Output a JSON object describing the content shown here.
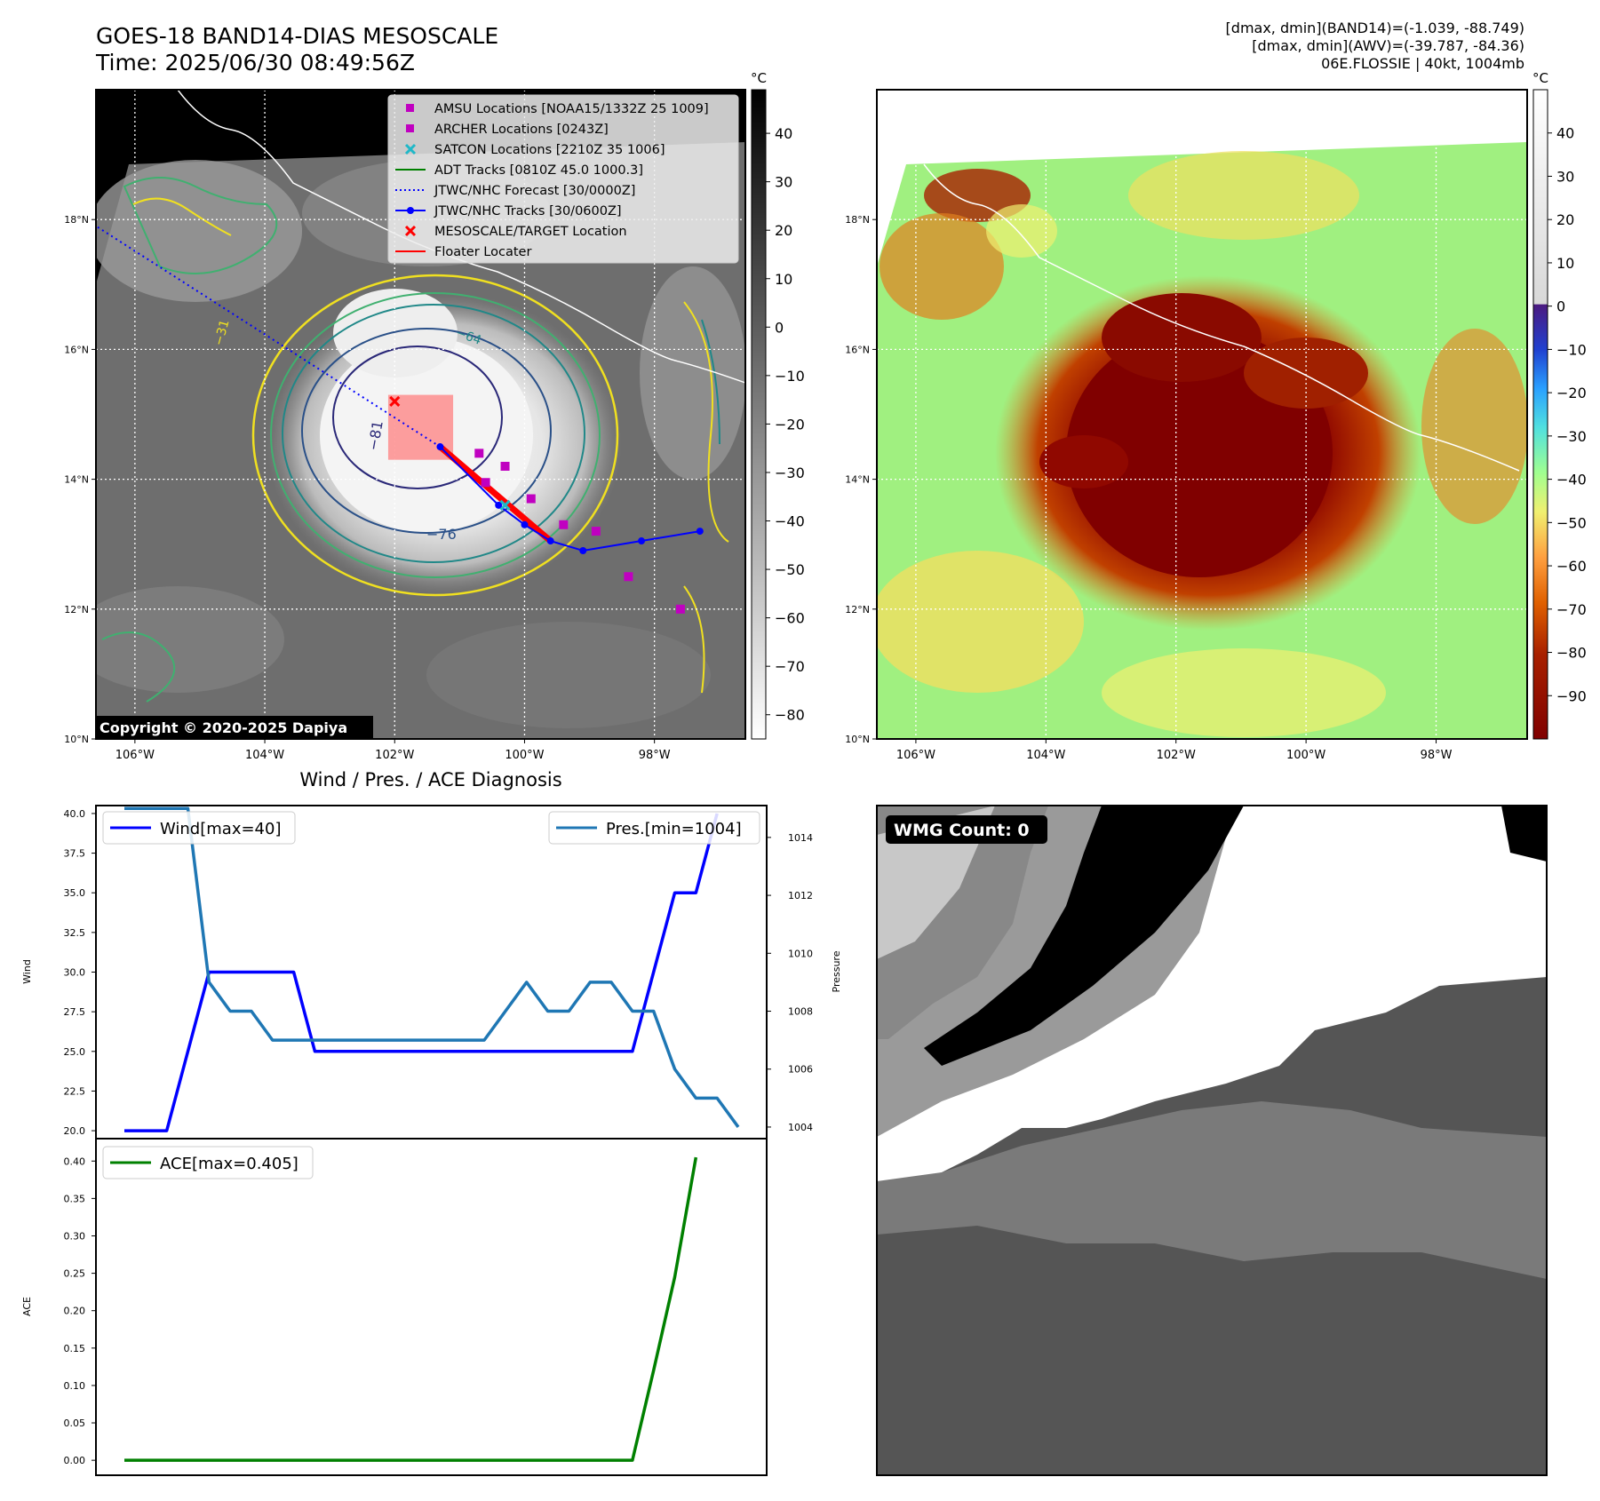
{
  "header": {
    "title_line1": "GOES-18 BAND14-DIAS MESOSCALE",
    "title_line2": "Time: 2025/06/30 08:49:56Z",
    "info_line1": "[dmax, dmin](BAND14)=(-1.039, -88.749)",
    "info_line2": "[dmax, dmin](AWV)=(-39.787, -84.36)",
    "info_line3": "06E.FLOSSIE | 40kt, 1004mb"
  },
  "map_axes": {
    "lon_ticks": [
      "106°W",
      "104°W",
      "102°W",
      "100°W",
      "98°W"
    ],
    "lat_ticks": [
      "18°N",
      "16°N",
      "14°N",
      "12°N",
      "10°N"
    ],
    "lon_values": [
      -106,
      -104,
      -102,
      -100,
      -98
    ],
    "lat_values": [
      18,
      16,
      14,
      12,
      10
    ],
    "lon_range": [
      -106.6,
      -96.6
    ],
    "lat_range": [
      10.0,
      20.0
    ]
  },
  "ir_panel": {
    "colorbar_unit": "°C",
    "colorbar_ticks": [
      "40",
      "30",
      "20",
      "10",
      "0",
      "−10",
      "−20",
      "−30",
      "−40",
      "−50",
      "−60",
      "−70",
      "−80"
    ],
    "colorbar_values": [
      40,
      30,
      20,
      10,
      0,
      -10,
      -20,
      -30,
      -40,
      -50,
      -60,
      -70,
      -80
    ],
    "colorbar_range": [
      -85,
      49
    ],
    "contour_labels": [
      "−81",
      "−76",
      "−64",
      "−31"
    ],
    "copyright": "Copyright © 2020-2025 Dapiya",
    "legend": [
      {
        "label": "AMSU Locations [NOAA15/1332Z 25 1009]",
        "marker": "square",
        "color": "#c000c0"
      },
      {
        "label": "ARCHER Locations [0243Z]",
        "marker": "square",
        "color": "#c000c0"
      },
      {
        "label": "SATCON Locations [2210Z 35 1006]",
        "marker": "x",
        "color": "#1fb8c8"
      },
      {
        "label": "ADT Tracks [0810Z 45.0 1000.3]",
        "marker": "line",
        "color": "#008000"
      },
      {
        "label": "JTWC/NHC Forecast [30/0000Z]",
        "marker": "dotted",
        "color": "#0000ff"
      },
      {
        "label": "JTWC/NHC Tracks [30/0600Z]",
        "marker": "line-dot",
        "color": "#0000ff"
      },
      {
        "label": "MESOSCALE/TARGET Location",
        "marker": "x",
        "color": "#ff0000"
      },
      {
        "label": "Floater Locater",
        "marker": "line",
        "color": "#ff0000"
      }
    ],
    "jtwc_track": [
      {
        "lon": -97.3,
        "lat": 13.2
      },
      {
        "lon": -98.2,
        "lat": 13.05
      },
      {
        "lon": -99.1,
        "lat": 12.9
      },
      {
        "lon": -99.6,
        "lat": 13.05
      },
      {
        "lon": -100.0,
        "lat": 13.3
      },
      {
        "lon": -100.4,
        "lat": 13.6
      },
      {
        "lon": -101.3,
        "lat": 14.5
      }
    ],
    "jtwc_forecast_start": {
      "lon": -101.3,
      "lat": 14.5
    },
    "jtwc_forecast_end": {
      "lon": -106.6,
      "lat": 17.9
    },
    "amsu_points": [
      {
        "lon": -100.7,
        "lat": 14.4
      },
      {
        "lon": -100.3,
        "lat": 14.2
      },
      {
        "lon": -100.6,
        "lat": 13.95
      },
      {
        "lon": -99.9,
        "lat": 13.7
      },
      {
        "lon": -99.4,
        "lat": 13.3
      },
      {
        "lon": -98.9,
        "lat": 13.2
      },
      {
        "lon": -98.4,
        "lat": 12.5
      },
      {
        "lon": -97.6,
        "lat": 12.0
      }
    ],
    "satcon_point": {
      "lon": -100.3,
      "lat": 13.6
    },
    "target_point": {
      "lon": -102.0,
      "lat": 15.2
    },
    "floater_box": {
      "lon_min": -102.1,
      "lon_max": -101.1,
      "lat_min": 14.3,
      "lat_max": 15.3
    }
  },
  "awv_panel": {
    "colorbar_unit": "°C",
    "colorbar_ticks": [
      "40",
      "30",
      "20",
      "10",
      "0",
      "−10",
      "−20",
      "−30",
      "−40",
      "−50",
      "−60",
      "−70",
      "−80",
      "−90"
    ],
    "colorbar_values": [
      40,
      30,
      20,
      10,
      0,
      -10,
      -20,
      -30,
      -40,
      -50,
      -60,
      -70,
      -80,
      -90
    ],
    "colorbar_range": [
      -100,
      50
    ]
  },
  "wmg_panel": {
    "badge": "WMG Count: 0"
  },
  "diagnosis": {
    "title": "Wind / Pres. / ACE Diagnosis",
    "wind_ylabel": "Wind",
    "pres_ylabel": "Pressure",
    "ace_ylabel": "ACE",
    "wind_legend": "Wind[max=40]",
    "pres_legend": "Pres.[min=1004]",
    "ace_legend": "ACE[max=0.405]"
  },
  "chart_data": [
    {
      "type": "line",
      "title": "Wind / Pres. / ACE Diagnosis",
      "ylabel": "Wind",
      "ylim": [
        19.5,
        40.5
      ],
      "yticks": [
        20.0,
        22.5,
        25.0,
        27.5,
        30.0,
        32.5,
        35.0,
        37.5,
        40.0
      ],
      "ytick_labels": [
        "20.0",
        "22.5",
        "25.0",
        "27.5",
        "30.0",
        "32.5",
        "35.0",
        "37.5",
        "40.0"
      ],
      "series": [
        {
          "name": "Wind[max=40]",
          "color": "#0000ff",
          "values": [
            20,
            20,
            20,
            25,
            30,
            30,
            30,
            30,
            30,
            25,
            25,
            25,
            25,
            25,
            25,
            25,
            25,
            25,
            25,
            25,
            25,
            25,
            25,
            25,
            25,
            30,
            35,
            35,
            40
          ]
        }
      ],
      "x": [
        0,
        1,
        2,
        3,
        4,
        5,
        6,
        7,
        8,
        9,
        10,
        11,
        12,
        13,
        14,
        15,
        16,
        17,
        18,
        19,
        20,
        21,
        22,
        23,
        24,
        25,
        26,
        27,
        28
      ]
    },
    {
      "type": "line",
      "ylabel": "Pressure",
      "ylim": [
        1003.6,
        1015.1
      ],
      "yticks": [
        1004,
        1006,
        1008,
        1010,
        1012,
        1014
      ],
      "ytick_labels": [
        "1004",
        "1006",
        "1008",
        "1010",
        "1012",
        "1014"
      ],
      "series": [
        {
          "name": "Pres.[min=1004]",
          "color": "#1f77b4",
          "values": [
            1015,
            1015,
            1015,
            1009,
            1008,
            1008,
            1007,
            1007,
            1007,
            1007,
            1007,
            1007,
            1007,
            1007,
            1007,
            1007,
            1007,
            1007,
            1008,
            1009,
            1008,
            1008,
            1009,
            1009,
            1008,
            1008,
            1006,
            1005,
            1005,
            1004
          ]
        }
      ],
      "x": [
        0,
        3,
        3,
        4,
        5,
        6,
        7,
        8,
        9,
        10,
        11,
        12,
        13,
        14,
        15,
        16,
        17,
        17,
        18,
        19,
        20,
        21,
        22,
        23,
        24,
        25,
        26,
        27,
        28,
        29
      ]
    },
    {
      "type": "line",
      "ylabel": "ACE",
      "ylim": [
        -0.02,
        0.43
      ],
      "yticks": [
        0.0,
        0.05,
        0.1,
        0.15,
        0.2,
        0.25,
        0.3,
        0.35,
        0.4
      ],
      "ytick_labels": [
        "0.00",
        "0.05",
        "0.10",
        "0.15",
        "0.20",
        "0.25",
        "0.30",
        "0.35",
        "0.40"
      ],
      "series": [
        {
          "name": "ACE[max=0.405]",
          "color": "#008000",
          "values": [
            0,
            0,
            0,
            0,
            0,
            0,
            0,
            0,
            0,
            0,
            0,
            0,
            0,
            0,
            0,
            0,
            0,
            0,
            0,
            0,
            0,
            0,
            0,
            0,
            0,
            0.12,
            0.245,
            0.405
          ]
        }
      ],
      "x": [
        0,
        1,
        2,
        3,
        4,
        5,
        6,
        7,
        8,
        9,
        10,
        11,
        12,
        13,
        14,
        15,
        16,
        17,
        18,
        19,
        20,
        21,
        22,
        23,
        24,
        25,
        26,
        27
      ]
    }
  ]
}
